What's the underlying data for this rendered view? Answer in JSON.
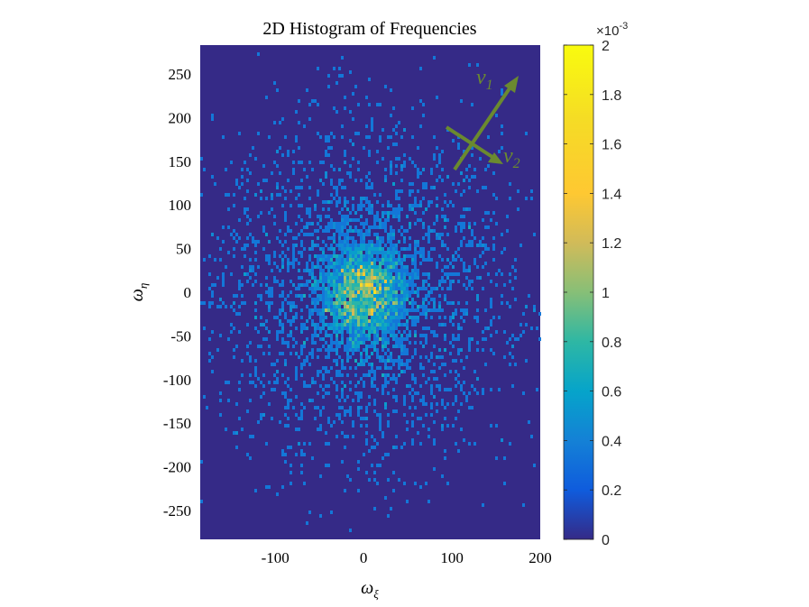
{
  "chart_data": {
    "type": "heatmap",
    "title": "2D Histogram of Frequencies",
    "xlabel": {
      "base": "ω",
      "sub": "ξ"
    },
    "ylabel": {
      "base": "ω",
      "sub": "η"
    },
    "xlim": [
      -185,
      200
    ],
    "ylim": [
      -283,
      283
    ],
    "xticks": [
      -100,
      0,
      100,
      200
    ],
    "yticks": [
      -250,
      -200,
      -150,
      -100,
      -50,
      0,
      50,
      100,
      150,
      200,
      250
    ],
    "xtick_labels": [
      "-100",
      "0",
      "100",
      "200"
    ],
    "ytick_labels": [
      "-250",
      "-200",
      "-150",
      "-100",
      "-50",
      "0",
      "50",
      "100",
      "150",
      "200",
      "250"
    ],
    "colorbar": {
      "clim": [
        0,
        0.002
      ],
      "ticks": [
        0,
        0.0002,
        0.0004,
        0.0006,
        0.0008,
        0.001,
        0.0012,
        0.0014,
        0.0016,
        0.0018,
        0.002
      ],
      "tick_labels": [
        "0",
        "0.2",
        "0.4",
        "0.6",
        "0.8",
        "1",
        "1.2",
        "1.4",
        "1.6",
        "1.8",
        "2"
      ],
      "exponent_label": {
        "base": "×10",
        "sup": "-3"
      },
      "colormap": "parula"
    },
    "distribution": {
      "center": [
        0,
        0
      ],
      "core_peak": 0.0015,
      "note": "sparse bins, density highest near origin"
    },
    "annotations": {
      "color": "#6b8a2f",
      "v1": {
        "base": "v",
        "sub": "1"
      },
      "v2": {
        "base": "v",
        "sub": "2"
      }
    }
  }
}
